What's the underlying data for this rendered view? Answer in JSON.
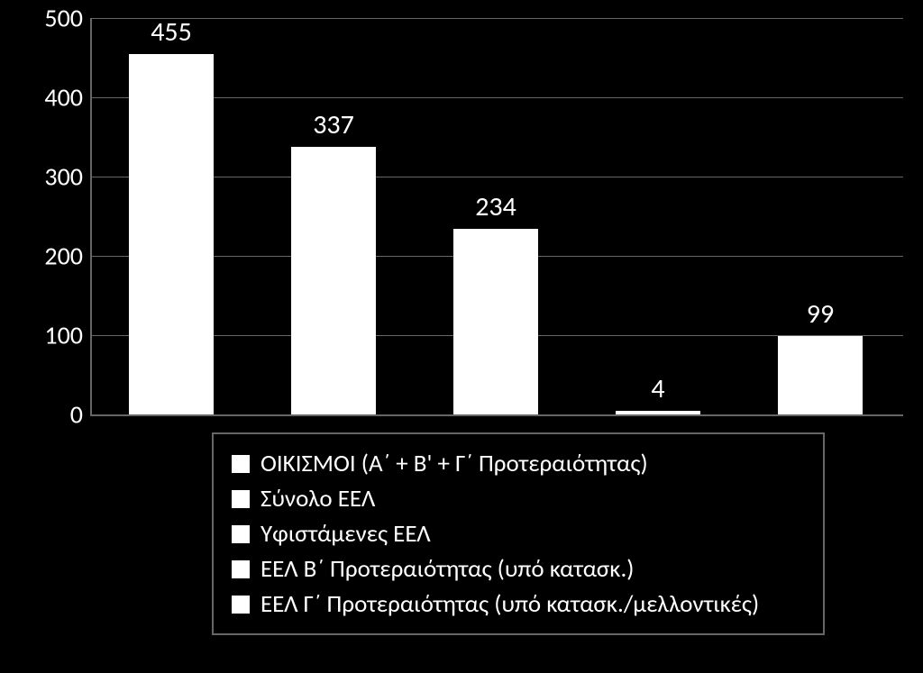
{
  "chart": {
    "type": "bar",
    "background_color": "#000000",
    "bar_color": "#ffffff",
    "grid_color": "#666666",
    "axis_color": "#666666",
    "text_color": "#ffffff",
    "ylim": [
      0,
      500
    ],
    "ytick_step": 100,
    "yticks": [
      "0",
      "100",
      "200",
      "300",
      "400",
      "500"
    ],
    "label_fontsize": 28,
    "data_label_fontsize": 30,
    "legend_fontsize": 27,
    "bar_width_ratio": 0.52,
    "bars": [
      {
        "value": 455,
        "label": "455"
      },
      {
        "value": 337,
        "label": "337"
      },
      {
        "value": 234,
        "label": "234"
      },
      {
        "value": 4,
        "label": "4"
      },
      {
        "value": 99,
        "label": "99"
      }
    ],
    "legend": [
      "ΟΙΚΙΣΜΟΙ (Α΄ + Β' + Γ΄ Προτεραιότητας)",
      "Σύνολο ΕΕΛ",
      "Υφιστάμενες ΕΕΛ",
      "ΕΕΛ Β΄ Προτεραιότητας (υπό κατασκ.)",
      "ΕΕΛ Γ΄ Προτεραιότητας (υπό κατασκ./μελλοντικές)"
    ]
  }
}
